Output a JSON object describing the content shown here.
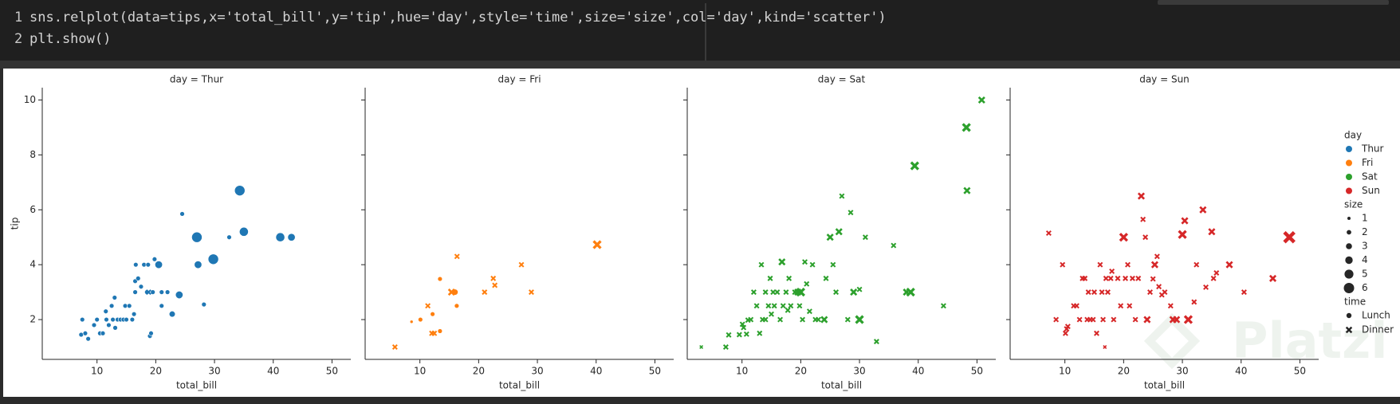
{
  "code": {
    "lines": [
      {
        "number": "1",
        "text": "sns.relplot(data=tips,x='total_bill',y='tip',hue='day',style='time',size='size',col='day',kind='scatter')"
      },
      {
        "number": "2",
        "text": "plt.show()"
      }
    ]
  },
  "watermark": "Platzi",
  "legend": {
    "hue_title": "day",
    "hue": [
      {
        "label": "Thur",
        "color": "#1f77b4"
      },
      {
        "label": "Fri",
        "color": "#ff7f0e"
      },
      {
        "label": "Sat",
        "color": "#2ca02c"
      },
      {
        "label": "Sun",
        "color": "#d62728"
      }
    ],
    "size_title": "size",
    "sizes": [
      1,
      2,
      3,
      4,
      5,
      6
    ],
    "style_title": "time",
    "styles": [
      {
        "label": "Lunch",
        "marker": "circle"
      },
      {
        "label": "Dinner",
        "marker": "x"
      }
    ]
  },
  "chart_data": [
    {
      "type": "scatter",
      "title": "day = Thur",
      "xlabel": "total_bill",
      "ylabel": "tip",
      "color": "#1f77b4",
      "xlim": [
        0.68,
        53.2
      ],
      "ylim": [
        0.55,
        10.45
      ],
      "xticks": [
        10,
        20,
        30,
        40,
        50
      ],
      "yticks": [
        2,
        4,
        6,
        8,
        10
      ],
      "show_ytick_labels": true,
      "series": [
        {
          "marker": "circle",
          "x": [
            7.5,
            7.3,
            8.0,
            8.5,
            9.5,
            10.0,
            10.5,
            11.0,
            11.5,
            11.6,
            12.0,
            12.5,
            12.7,
            13.0,
            13.1,
            13.5,
            14.0,
            14.5,
            14.8,
            15.0,
            15.5,
            16.0,
            16.3,
            16.5,
            16.5,
            16.6,
            17.0,
            17.5,
            18.0,
            18.5,
            18.7,
            19.0,
            19.2,
            19.5,
            19.8,
            20.5,
            21.0,
            21.0,
            22.0,
            22.8,
            24.0,
            24.5,
            27.0,
            27.2,
            28.2,
            29.8,
            32.5,
            34.3,
            35.0,
            41.2,
            43.1
          ],
          "y": [
            2.0,
            1.45,
            1.5,
            1.3,
            1.8,
            2.0,
            1.5,
            1.5,
            2.3,
            2.0,
            1.8,
            2.5,
            2.0,
            2.8,
            1.7,
            2.0,
            2.0,
            2.0,
            2.5,
            2.0,
            2.5,
            2.0,
            2.2,
            3.0,
            3.4,
            4.0,
            3.5,
            3.2,
            4.0,
            3.0,
            4.0,
            1.4,
            1.5,
            3.0,
            4.2,
            4.0,
            3.0,
            2.5,
            3.0,
            2.2,
            2.9,
            5.85,
            5.0,
            4.0,
            2.55,
            4.2,
            5.0,
            6.7,
            5.2,
            5.0,
            5.0
          ],
          "size": [
            2,
            2,
            2,
            2,
            2,
            2,
            2,
            2,
            2,
            2,
            2,
            2,
            2,
            2,
            2,
            2,
            2,
            2,
            2,
            2,
            2,
            2,
            2,
            2,
            2,
            2,
            2,
            2,
            2,
            2,
            2,
            2,
            2,
            2,
            2,
            4,
            2,
            2,
            2,
            3,
            4,
            2,
            6,
            4,
            2,
            6,
            2,
            6,
            5,
            5,
            4
          ]
        },
        {
          "marker": "x",
          "x": [
            18.78
          ],
          "y": [
            3.0
          ],
          "size": [
            2
          ]
        }
      ]
    },
    {
      "type": "scatter",
      "title": "day = Fri",
      "xlabel": "total_bill",
      "color": "#ff7f0e",
      "xlim": [
        0.68,
        53.2
      ],
      "ylim": [
        0.55,
        10.45
      ],
      "xticks": [
        10,
        20,
        30,
        40,
        50
      ],
      "yticks": [
        2,
        4,
        6,
        8,
        10
      ],
      "show_ytick_labels": false,
      "series": [
        {
          "marker": "circle",
          "x": [
            12.16,
            13.42,
            8.58,
            15.98,
            13.42,
            16.27,
            10.09
          ],
          "y": [
            2.2,
            3.48,
            1.92,
            3.0,
            1.58,
            2.5,
            2.0
          ],
          "size": [
            2,
            2,
            1,
            3,
            2,
            2,
            2
          ]
        },
        {
          "marker": "x",
          "x": [
            28.97,
            22.49,
            5.75,
            16.32,
            22.75,
            40.17,
            27.28,
            12.03,
            21.01,
            12.46,
            11.35,
            15.38
          ],
          "y": [
            3.0,
            3.5,
            1.0,
            4.3,
            3.25,
            4.73,
            4.0,
            1.5,
            3.0,
            1.5,
            2.5,
            3.0
          ],
          "size": [
            2,
            2,
            2,
            2,
            2,
            4,
            2,
            2,
            2,
            2,
            2,
            3
          ]
        }
      ]
    },
    {
      "type": "scatter",
      "title": "day = Sat",
      "xlabel": "total_bill",
      "color": "#2ca02c",
      "xlim": [
        0.68,
        53.2
      ],
      "ylim": [
        0.55,
        10.45
      ],
      "xticks": [
        10,
        20,
        30,
        40,
        50
      ],
      "yticks": [
        2,
        4,
        6,
        8,
        10
      ],
      "show_ytick_labels": false,
      "series": [
        {
          "marker": "x",
          "x": [
            3.07,
            7.25,
            7.74,
            9.55,
            10.07,
            10.27,
            10.77,
            11.02,
            11.5,
            12.0,
            12.5,
            13.0,
            13.3,
            13.5,
            14.0,
            14.0,
            14.5,
            14.8,
            15.0,
            15.3,
            15.5,
            16.0,
            16.5,
            16.8,
            17.0,
            17.5,
            17.8,
            18.0,
            18.3,
            19.0,
            19.5,
            19.8,
            20.0,
            20.3,
            20.7,
            21.0,
            21.5,
            22.0,
            22.5,
            23.0,
            24.0,
            24.3,
            25.0,
            25.5,
            26.0,
            26.5,
            27.0,
            28.0,
            28.5,
            29.0,
            30.0,
            30.0,
            31.0,
            32.9,
            35.8,
            38.0,
            38.7,
            39.4,
            44.3,
            48.2,
            48.3,
            50.8
          ],
          "y": [
            1.0,
            1.0,
            1.44,
            1.45,
            1.83,
            1.71,
            1.47,
            1.98,
            2.0,
            3.0,
            2.5,
            1.5,
            4.0,
            2.0,
            3.0,
            2.0,
            2.5,
            3.5,
            2.2,
            3.0,
            2.5,
            3.0,
            2.0,
            4.1,
            2.5,
            3.0,
            2.34,
            3.5,
            2.5,
            3.0,
            3.0,
            2.5,
            3.0,
            2.0,
            4.1,
            3.3,
            2.3,
            4.0,
            2.0,
            2.0,
            2.0,
            3.5,
            5.0,
            4.0,
            3.0,
            5.2,
            6.5,
            2.0,
            5.9,
            3.0,
            2.0,
            3.1,
            5.0,
            1.2,
            4.7,
            3.0,
            3.0,
            7.6,
            2.5,
            9.0,
            6.7,
            10.0
          ],
          "size": [
            1,
            2,
            2,
            2,
            2,
            2,
            2,
            2,
            2,
            2,
            2,
            2,
            2,
            2,
            2,
            2,
            2,
            2,
            2,
            2,
            2,
            2,
            2,
            3,
            2,
            2,
            2,
            2,
            2,
            2,
            3,
            2,
            4,
            2,
            2,
            2,
            2,
            2,
            2,
            2,
            3,
            2,
            3,
            2,
            2,
            3,
            2,
            2,
            2,
            3,
            4,
            2,
            2,
            2,
            2,
            3,
            4,
            4,
            2,
            4,
            3,
            3
          ]
        }
      ]
    },
    {
      "type": "scatter",
      "title": "day = Sun",
      "xlabel": "total_bill",
      "color": "#d62728",
      "xlim": [
        0.68,
        53.2
      ],
      "ylim": [
        0.55,
        10.45
      ],
      "xticks": [
        10,
        20,
        30,
        40,
        50
      ],
      "yticks": [
        2,
        4,
        6,
        8,
        10
      ],
      "show_ytick_labels": false,
      "series": [
        {
          "marker": "x",
          "x": [
            7.25,
            8.5,
            9.6,
            10.1,
            10.3,
            10.5,
            11.5,
            12.0,
            12.5,
            13.0,
            13.4,
            13.8,
            14.0,
            14.3,
            14.8,
            15.0,
            15.4,
            16.0,
            16.3,
            16.5,
            16.8,
            17.0,
            17.3,
            17.8,
            18.0,
            18.3,
            19.0,
            19.5,
            20.0,
            20.3,
            20.7,
            21.0,
            21.5,
            22.0,
            22.5,
            23.0,
            23.3,
            23.7,
            24.0,
            24.5,
            25.0,
            25.3,
            25.7,
            26.0,
            26.5,
            27.0,
            28.0,
            28.4,
            29.0,
            30.0,
            30.4,
            31.0,
            32.0,
            32.4,
            33.5,
            34.0,
            35.0,
            35.3,
            35.8,
            38.0,
            40.5,
            45.4,
            48.2
          ],
          "y": [
            5.15,
            2.0,
            4.0,
            1.5,
            1.66,
            1.75,
            2.5,
            2.5,
            2.0,
            3.5,
            3.5,
            2.0,
            3.0,
            2.0,
            2.0,
            3.0,
            1.5,
            4.0,
            3.0,
            2.0,
            1.0,
            3.5,
            3.0,
            3.5,
            3.76,
            2.0,
            3.5,
            2.5,
            5.0,
            3.5,
            4.0,
            2.5,
            3.5,
            2.0,
            3.5,
            6.5,
            5.65,
            5.0,
            2.0,
            3.0,
            3.48,
            4.0,
            4.3,
            3.2,
            2.9,
            3.0,
            2.5,
            2.0,
            2.0,
            5.1,
            5.6,
            2.0,
            2.64,
            4.0,
            6.0,
            3.18,
            5.2,
            3.5,
            3.7,
            4.0,
            3.0,
            3.5,
            5.0
          ],
          "size": [
            2,
            2,
            2,
            2,
            2,
            2,
            2,
            2,
            2,
            2,
            2,
            2,
            2,
            2,
            2,
            2,
            2,
            2,
            2,
            2,
            1,
            2,
            2,
            2,
            2,
            2,
            2,
            2,
            4,
            2,
            2,
            2,
            2,
            2,
            2,
            3,
            2,
            2,
            3,
            2,
            2,
            3,
            2,
            2,
            2,
            2,
            2,
            3,
            3,
            4,
            3,
            4,
            2,
            2,
            3,
            2,
            3,
            2,
            2,
            3,
            2,
            3,
            6
          ]
        }
      ]
    }
  ]
}
